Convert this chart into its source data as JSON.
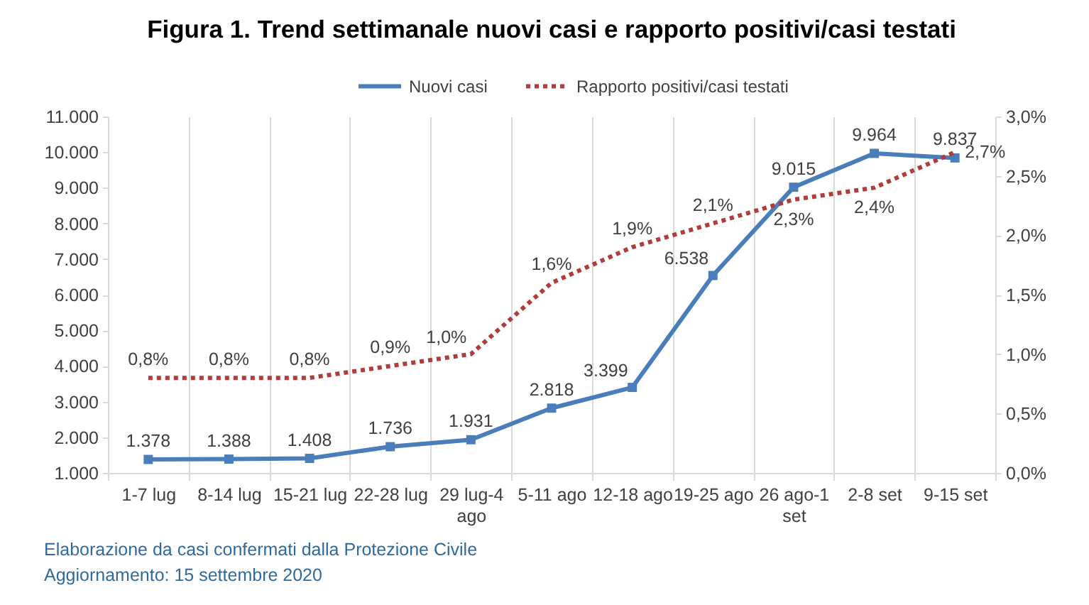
{
  "chart_data": {
    "type": "line",
    "title": "Figura 1. Trend settimanale nuovi casi e rapporto positivi/casi testati",
    "categories": [
      "1-7 lug",
      "8-14 lug",
      "15-21 lug",
      "22-28 lug",
      "29 lug-4 ago",
      "5-11 ago",
      "12-18 ago",
      "19-25 ago",
      "26 ago-1 set",
      "2-8 set",
      "9-15 set"
    ],
    "series": [
      {
        "name": "Nuovi casi",
        "color": "#4a7ebb",
        "marker": "square",
        "line_style": "solid",
        "values": [
          1378,
          1388,
          1408,
          1736,
          1931,
          2818,
          3399,
          6538,
          9015,
          9964,
          9837
        ],
        "value_labels": [
          "1.378",
          "1.388",
          "1.408",
          "1.736",
          "1.931",
          "2.818",
          "3.399",
          "6.538",
          "9.015",
          "9.964",
          "9.837"
        ]
      },
      {
        "name": "Rapporto positivi/casi testati",
        "color": "#b03c3c",
        "axis": "y2",
        "marker": "none",
        "line_style": "dotted",
        "values": [
          0.8,
          0.8,
          0.8,
          0.9,
          1.0,
          1.6,
          1.9,
          2.1,
          2.3,
          2.4,
          2.7
        ],
        "value_labels": [
          "0,8%",
          "0,8%",
          "0,8%",
          "0,9%",
          "1,0%",
          "1,6%",
          "1,9%",
          "2,1%",
          "2,3%",
          "2,4%",
          "2,7%"
        ]
      }
    ],
    "ylim": [
      1000,
      11000
    ],
    "yticks": [
      {
        "value": 1000,
        "label": "1.000"
      },
      {
        "value": 2000,
        "label": "2.000"
      },
      {
        "value": 3000,
        "label": "3.000"
      },
      {
        "value": 4000,
        "label": "4.000"
      },
      {
        "value": 5000,
        "label": "5.000"
      },
      {
        "value": 6000,
        "label": "6.000"
      },
      {
        "value": 7000,
        "label": "7.000"
      },
      {
        "value": 8000,
        "label": "8.000"
      },
      {
        "value": 9000,
        "label": "9.000"
      },
      {
        "value": 10000,
        "label": "10.000"
      },
      {
        "value": 11000,
        "label": "11.000"
      }
    ],
    "y2lim": [
      0,
      3
    ],
    "y2ticks": [
      {
        "value": 0,
        "label": "0,0%"
      },
      {
        "value": 0.5,
        "label": "0,5%"
      },
      {
        "value": 1,
        "label": "1,0%"
      },
      {
        "value": 1.5,
        "label": "1,5%"
      },
      {
        "value": 2,
        "label": "2,0%"
      },
      {
        "value": 2.5,
        "label": "2,5%"
      },
      {
        "value": 3,
        "label": "3,0%"
      }
    ],
    "grid": "x",
    "legend": "top",
    "annotations": [
      "Elaborazione da casi confermati dalla Protezione Civile",
      "Aggiornamento: 15 settembre 2020"
    ]
  }
}
